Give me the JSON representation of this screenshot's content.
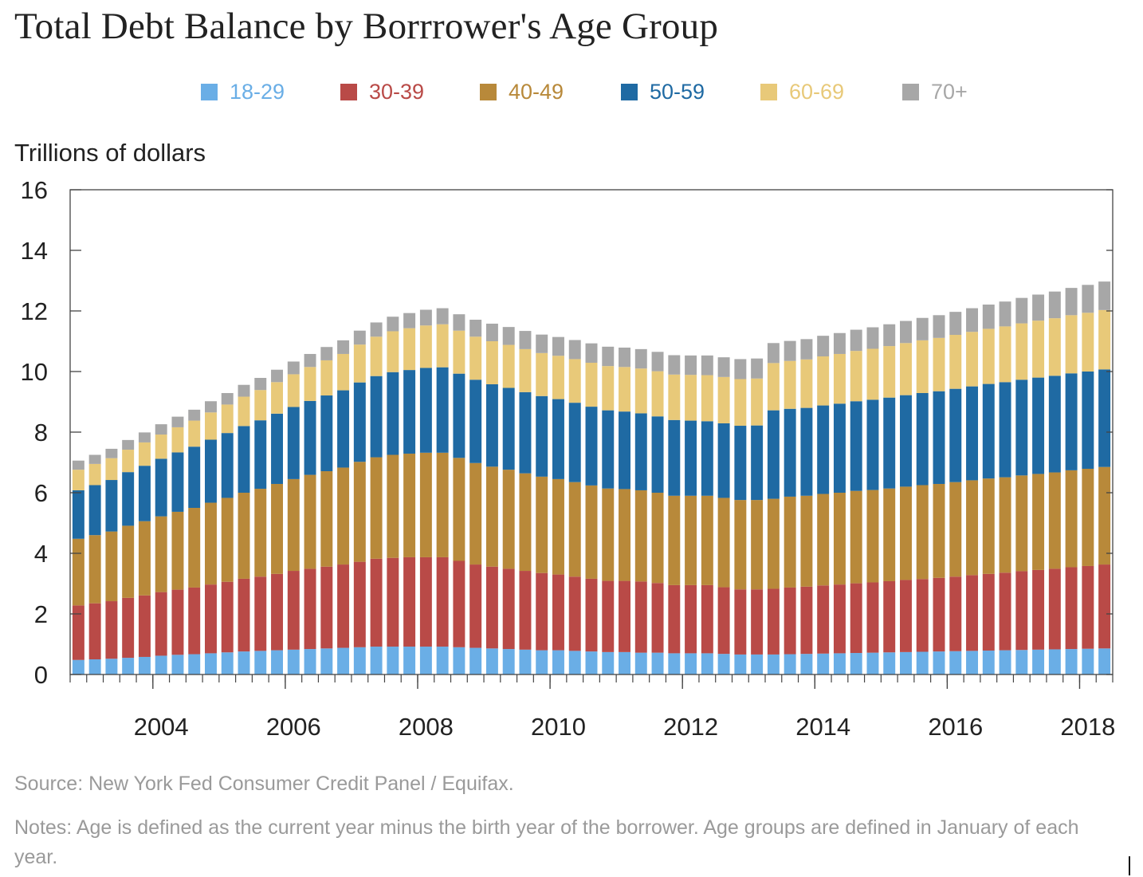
{
  "title": "Total Debt Balance by Borrrower's Age Group",
  "unit_label": "Trillions of dollars",
  "source": "Source: New York Fed Consumer Credit Panel / Equifax.",
  "notes": "Notes: Age is defined as the current year minus the birth year of the borrower. Age groups are defined in January of each year.",
  "chart_data": {
    "type": "bar",
    "stacked": true,
    "title": "Total Debt Balance by Borrrower's Age Group",
    "ylabel": "Trillions of dollars",
    "xlabel": "",
    "ylim": [
      0,
      16
    ],
    "yticks": [
      0,
      2,
      4,
      6,
      8,
      10,
      12,
      14,
      16
    ],
    "xticks": [
      {
        "label": "2004",
        "index": 5.5
      },
      {
        "label": "2006",
        "index": 13.5
      },
      {
        "label": "2008",
        "index": 21.5
      },
      {
        "label": "2010",
        "index": 29.5
      },
      {
        "label": "2012",
        "index": 37.5
      },
      {
        "label": "2014",
        "index": 45.5
      },
      {
        "label": "2016",
        "index": 53.5
      },
      {
        "label": "2018",
        "index": 61.5
      }
    ],
    "grid": false,
    "legend_position": "top",
    "categories": [
      "2003Q1",
      "2003Q2",
      "2003Q3",
      "2003Q4",
      "2004Q1",
      "2004Q2",
      "2004Q3",
      "2004Q4",
      "2005Q1",
      "2005Q2",
      "2005Q3",
      "2005Q4",
      "2006Q1",
      "2006Q2",
      "2006Q3",
      "2006Q4",
      "2007Q1",
      "2007Q2",
      "2007Q3",
      "2007Q4",
      "2008Q1",
      "2008Q2",
      "2008Q3",
      "2008Q4",
      "2009Q1",
      "2009Q2",
      "2009Q3",
      "2009Q4",
      "2010Q1",
      "2010Q2",
      "2010Q3",
      "2010Q4",
      "2011Q1",
      "2011Q2",
      "2011Q3",
      "2011Q4",
      "2012Q1",
      "2012Q2",
      "2012Q3",
      "2012Q4",
      "2013Q1",
      "2013Q2",
      "2013Q3",
      "2013Q4",
      "2014Q1",
      "2014Q2",
      "2014Q3",
      "2014Q4",
      "2015Q1",
      "2015Q2",
      "2015Q3",
      "2015Q4",
      "2016Q1",
      "2016Q2",
      "2016Q3",
      "2016Q4",
      "2017Q1",
      "2017Q2",
      "2017Q3",
      "2017Q4",
      "2018Q1",
      "2018Q2",
      "2018Q3"
    ],
    "series": [
      {
        "name": "18-29",
        "color": "#6aaee6",
        "values": [
          0.48,
          0.5,
          0.52,
          0.55,
          0.58,
          0.62,
          0.65,
          0.67,
          0.7,
          0.73,
          0.76,
          0.78,
          0.8,
          0.82,
          0.84,
          0.86,
          0.88,
          0.9,
          0.92,
          0.92,
          0.92,
          0.92,
          0.92,
          0.9,
          0.88,
          0.86,
          0.84,
          0.82,
          0.8,
          0.8,
          0.78,
          0.76,
          0.74,
          0.74,
          0.72,
          0.72,
          0.7,
          0.7,
          0.7,
          0.68,
          0.66,
          0.66,
          0.66,
          0.67,
          0.68,
          0.69,
          0.7,
          0.71,
          0.72,
          0.73,
          0.74,
          0.75,
          0.76,
          0.77,
          0.78,
          0.79,
          0.8,
          0.81,
          0.82,
          0.83,
          0.84,
          0.85,
          0.86
        ]
      },
      {
        "name": "30-39",
        "color": "#b94a47",
        "values": [
          1.8,
          1.85,
          1.9,
          1.98,
          2.03,
          2.1,
          2.15,
          2.2,
          2.27,
          2.33,
          2.4,
          2.45,
          2.52,
          2.6,
          2.65,
          2.7,
          2.75,
          2.82,
          2.9,
          2.93,
          2.95,
          2.95,
          2.95,
          2.85,
          2.75,
          2.7,
          2.65,
          2.6,
          2.55,
          2.5,
          2.45,
          2.4,
          2.35,
          2.35,
          2.35,
          2.3,
          2.25,
          2.25,
          2.25,
          2.2,
          2.15,
          2.15,
          2.17,
          2.2,
          2.22,
          2.25,
          2.27,
          2.3,
          2.32,
          2.35,
          2.38,
          2.4,
          2.43,
          2.46,
          2.5,
          2.53,
          2.56,
          2.6,
          2.63,
          2.66,
          2.7,
          2.73,
          2.77
        ]
      },
      {
        "name": "40-49",
        "color": "#b8893a",
        "values": [
          2.2,
          2.25,
          2.3,
          2.38,
          2.45,
          2.5,
          2.57,
          2.63,
          2.7,
          2.77,
          2.84,
          2.9,
          2.97,
          3.03,
          3.1,
          3.15,
          3.2,
          3.3,
          3.35,
          3.4,
          3.42,
          3.45,
          3.45,
          3.4,
          3.35,
          3.3,
          3.27,
          3.22,
          3.18,
          3.15,
          3.12,
          3.08,
          3.05,
          3.03,
          3.01,
          2.98,
          2.95,
          2.95,
          2.95,
          2.95,
          2.95,
          2.95,
          2.97,
          3.0,
          3.0,
          3.02,
          3.03,
          3.05,
          3.05,
          3.06,
          3.08,
          3.1,
          3.1,
          3.12,
          3.13,
          3.15,
          3.15,
          3.16,
          3.17,
          3.18,
          3.2,
          3.21,
          3.22
        ]
      },
      {
        "name": "50-59",
        "color": "#1f6aa3",
        "values": [
          1.6,
          1.65,
          1.7,
          1.77,
          1.83,
          1.9,
          1.96,
          2.02,
          2.08,
          2.14,
          2.2,
          2.26,
          2.32,
          2.38,
          2.44,
          2.5,
          2.55,
          2.62,
          2.68,
          2.73,
          2.76,
          2.8,
          2.82,
          2.78,
          2.75,
          2.72,
          2.7,
          2.68,
          2.66,
          2.64,
          2.62,
          2.6,
          2.58,
          2.56,
          2.54,
          2.52,
          2.5,
          2.48,
          2.46,
          2.46,
          2.45,
          2.46,
          2.92,
          2.9,
          2.9,
          2.92,
          2.94,
          2.96,
          2.98,
          3.0,
          3.02,
          3.04,
          3.06,
          3.08,
          3.1,
          3.12,
          3.14,
          3.16,
          3.18,
          3.19,
          3.2,
          3.21,
          3.22
        ]
      },
      {
        "name": "60-69",
        "color": "#e8c979",
        "values": [
          0.68,
          0.7,
          0.72,
          0.74,
          0.77,
          0.8,
          0.83,
          0.86,
          0.9,
          0.94,
          0.97,
          1.0,
          1.04,
          1.08,
          1.12,
          1.16,
          1.2,
          1.25,
          1.3,
          1.35,
          1.38,
          1.4,
          1.42,
          1.42,
          1.42,
          1.42,
          1.42,
          1.42,
          1.42,
          1.43,
          1.44,
          1.45,
          1.46,
          1.47,
          1.48,
          1.49,
          1.5,
          1.51,
          1.52,
          1.53,
          1.54,
          1.55,
          1.56,
          1.58,
          1.6,
          1.62,
          1.64,
          1.66,
          1.68,
          1.7,
          1.72,
          1.74,
          1.76,
          1.78,
          1.8,
          1.82,
          1.84,
          1.86,
          1.88,
          1.9,
          1.92,
          1.94,
          1.96
        ]
      },
      {
        "name": "70+",
        "color": "#a7a7a7",
        "values": [
          0.3,
          0.3,
          0.31,
          0.32,
          0.33,
          0.34,
          0.35,
          0.36,
          0.37,
          0.38,
          0.39,
          0.4,
          0.41,
          0.42,
          0.43,
          0.44,
          0.45,
          0.46,
          0.47,
          0.48,
          0.5,
          0.52,
          0.53,
          0.54,
          0.56,
          0.58,
          0.59,
          0.6,
          0.61,
          0.62,
          0.63,
          0.64,
          0.64,
          0.64,
          0.64,
          0.64,
          0.64,
          0.64,
          0.65,
          0.65,
          0.66,
          0.66,
          0.66,
          0.66,
          0.67,
          0.68,
          0.69,
          0.7,
          0.71,
          0.72,
          0.73,
          0.74,
          0.75,
          0.76,
          0.78,
          0.8,
          0.82,
          0.84,
          0.86,
          0.88,
          0.9,
          0.92,
          0.94
        ]
      }
    ]
  }
}
